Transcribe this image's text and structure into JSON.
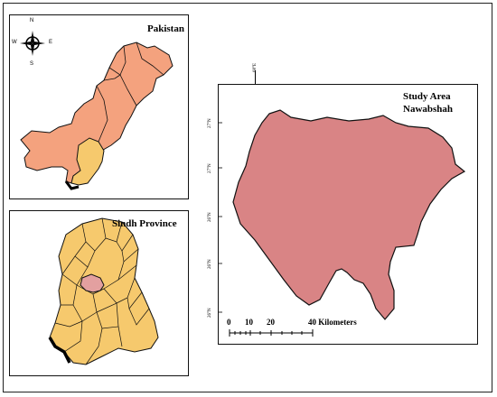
{
  "pakistan_panel": {
    "title": "Pakistan",
    "compass": {
      "n": "N",
      "s": "S",
      "e": "E",
      "w": "W"
    },
    "fill": "#f4a27e",
    "highlight_fill": "#f6c96d"
  },
  "sindh_panel": {
    "title": "Sindh Province",
    "fill": "#f6c96d",
    "highlight_fill": "#e3a0a0"
  },
  "study_panel": {
    "title_line1": "Study Area",
    "title_line2": "Nawabshah",
    "fill": "#d98485",
    "top_label": "68°E",
    "lat_labels": [
      "27°N",
      "27°N",
      "26°N",
      "26°N",
      "26°N"
    ],
    "scale": {
      "ticks": [
        "0",
        "10",
        "20",
        "40 Kilometers"
      ]
    }
  }
}
